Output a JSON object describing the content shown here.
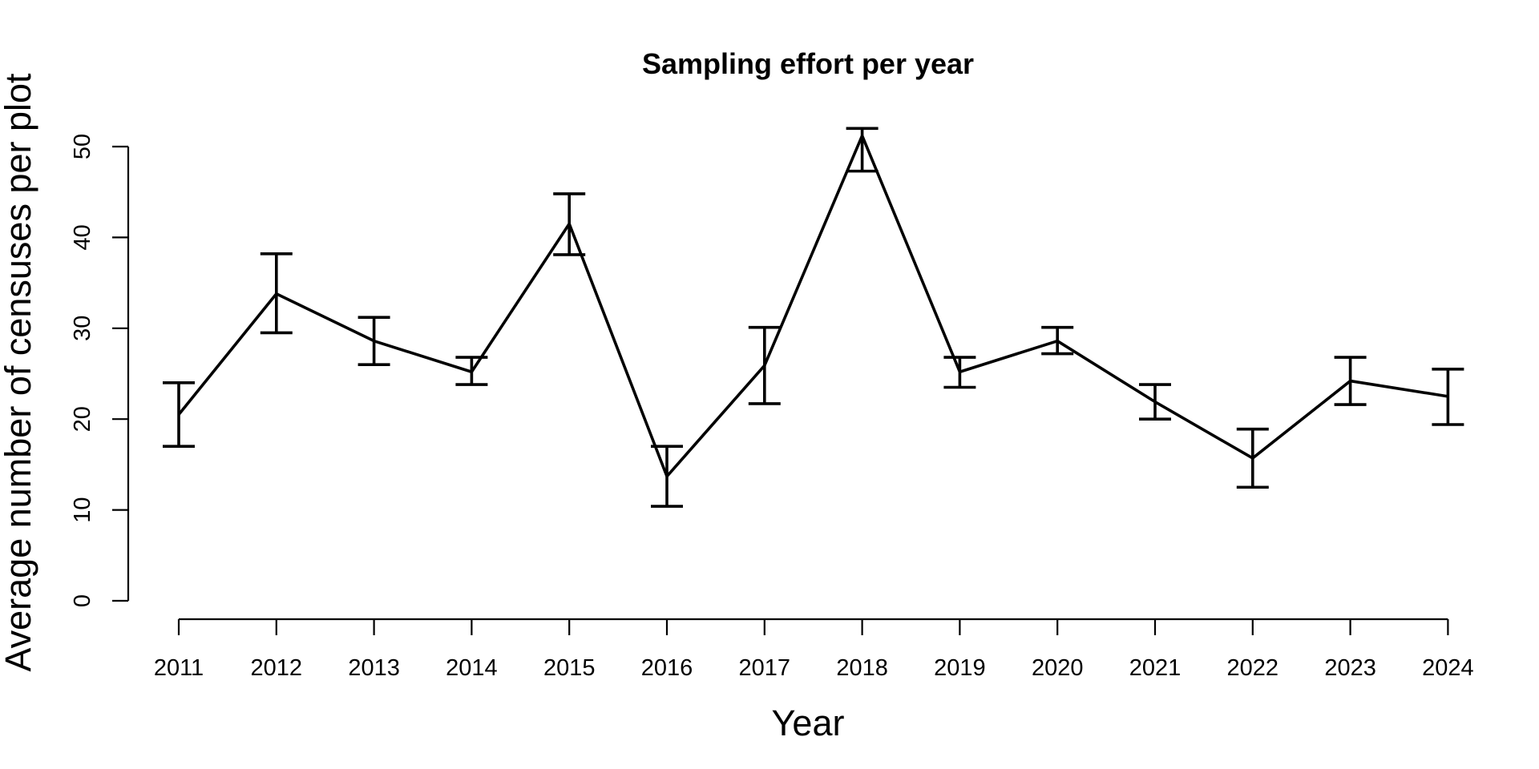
{
  "chart_data": {
    "type": "line",
    "title": "Sampling effort per year",
    "xlabel": "Year",
    "ylabel": "Average number of censuses per plot",
    "categories": [
      "2011",
      "2012",
      "2013",
      "2014",
      "2015",
      "2016",
      "2017",
      "2018",
      "2019",
      "2020",
      "2021",
      "2022",
      "2023",
      "2024"
    ],
    "series": [
      {
        "values": [
          20.5,
          33.8,
          28.6,
          25.2,
          41.5,
          13.7,
          25.9,
          51.2,
          25.2,
          28.6,
          21.9,
          15.7,
          24.2,
          22.5
        ],
        "error_low": [
          17.0,
          29.5,
          26.0,
          23.8,
          38.1,
          10.4,
          21.7,
          47.3,
          23.5,
          27.2,
          20.0,
          12.5,
          21.6,
          19.4
        ],
        "error_high": [
          24.0,
          38.2,
          31.2,
          26.8,
          44.8,
          17.0,
          30.1,
          52.0,
          26.8,
          30.1,
          23.8,
          18.9,
          26.8,
          25.5
        ]
      }
    ],
    "yticks": [
      0,
      10,
      20,
      30,
      40,
      50
    ],
    "ylim": [
      0,
      52
    ],
    "grid": false,
    "color": "#000000"
  }
}
